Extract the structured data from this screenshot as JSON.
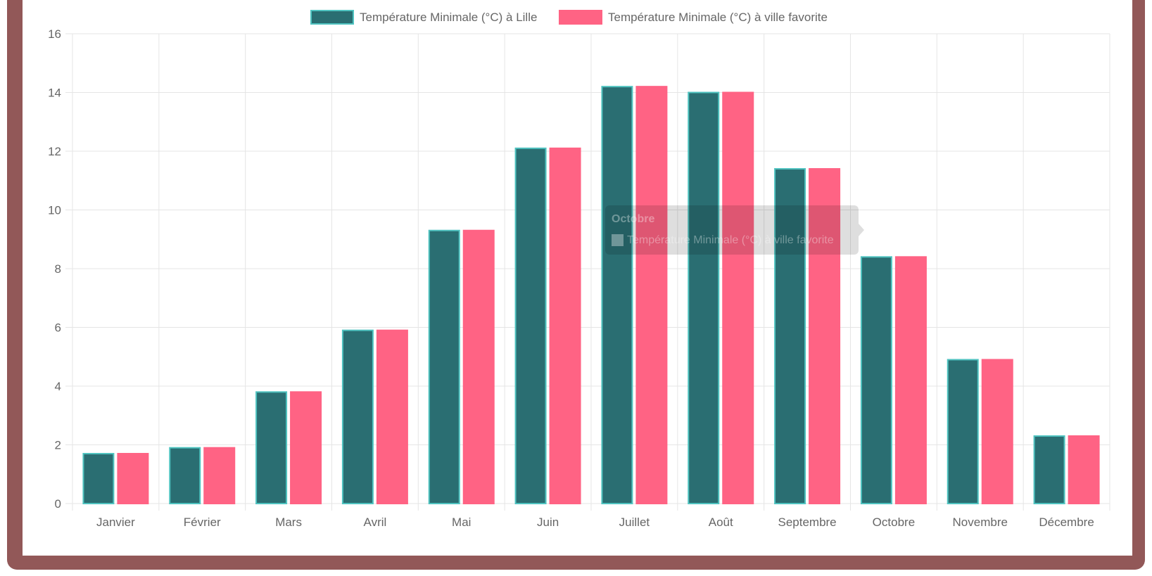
{
  "chart_data": {
    "type": "bar",
    "categories": [
      "Janvier",
      "Février",
      "Mars",
      "Avril",
      "Mai",
      "Juin",
      "Juillet",
      "Août",
      "Septembre",
      "Octobre",
      "Novembre",
      "Décembre"
    ],
    "series": [
      {
        "name": "Température Minimale (°C) à Lille",
        "color": "#2a6e72",
        "border": "#4fc3c0",
        "values": [
          1.7,
          1.9,
          3.8,
          5.9,
          9.3,
          12.1,
          14.2,
          14.0,
          11.4,
          8.4,
          4.9,
          2.3
        ]
      },
      {
        "name": "Température Minimale (°C) à ville favorite",
        "color": "#ff6384",
        "border": "#ff6384",
        "values": [
          1.7,
          1.9,
          3.8,
          5.9,
          9.3,
          12.1,
          14.2,
          14.0,
          11.4,
          8.4,
          4.9,
          2.3
        ]
      }
    ],
    "ylim": [
      0,
      16
    ],
    "yticks": [
      0,
      2,
      4,
      6,
      8,
      10,
      12,
      14,
      16
    ],
    "grid": true,
    "legend": "top-center",
    "tooltip": {
      "title": "Octobre",
      "label": "Température Minimale (°C) à ville favorite"
    }
  }
}
